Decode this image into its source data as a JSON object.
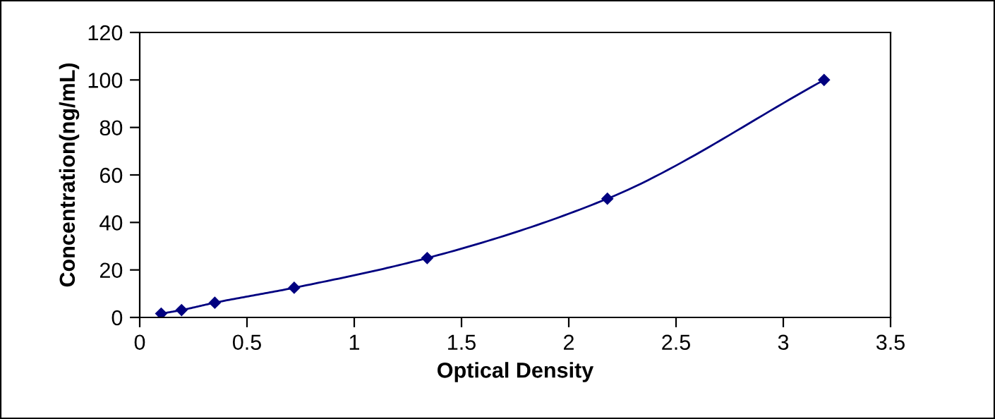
{
  "chart_data": {
    "type": "line",
    "xlabel": "Optical Density",
    "ylabel": "Concentration(ng/mL)",
    "series": [
      {
        "color": "#000080",
        "x": [
          0.1,
          0.195,
          0.35,
          0.72,
          1.34,
          2.18,
          3.19
        ],
        "values": [
          1.6,
          3.1,
          6.2,
          12.5,
          25,
          50,
          100
        ]
      }
    ],
    "xlim": [
      0,
      3.5
    ],
    "xticks": [
      0,
      0.5,
      1,
      1.5,
      2,
      2.5,
      3,
      3.5
    ],
    "ylim": [
      0,
      120
    ],
    "yticks": [
      0,
      20,
      40,
      60,
      80,
      100,
      120
    ],
    "grid": false,
    "marker": "diamond",
    "line_style": "solid"
  }
}
